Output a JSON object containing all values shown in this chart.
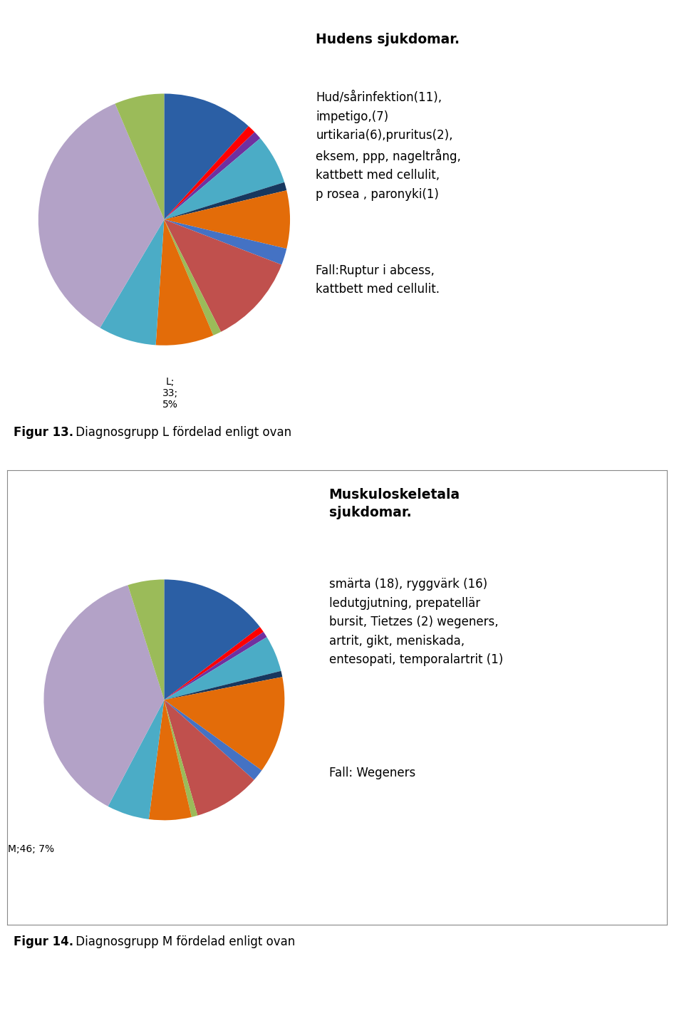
{
  "chart1": {
    "title_bold": "Hudens sjukdomar.",
    "text1": "Hud/sårinfektion(11),\nimpetigo,(7)\nurtikaria(6),pruritus(2),\neksem, ppp, nageltrång,\nkattbett med cellulit,\np rosea , paronyki(1)",
    "text2": "Fall:Ruptur i abcess,\nkattbett med cellulit.",
    "label": "L;\n33;\n5%",
    "slices": [
      11,
      1,
      1,
      6,
      1,
      7,
      2,
      11,
      1,
      7,
      7,
      33,
      6
    ],
    "colors": [
      "#2B5FA5",
      "#FF0000",
      "#7030A0",
      "#4BACC6",
      "#17375E",
      "#E36C09",
      "#4472C4",
      "#C0504D",
      "#9BBB59",
      "#E36C09",
      "#4BACC6",
      "#B3A2C7",
      "#9BBB59"
    ],
    "startangle": 90
  },
  "chart2": {
    "title_bold": "Muskuloskeletala\nsjukdomar.",
    "text1": "smärta (18), ryggvärk (16)\nledutgjutning, prepatellär\nbursit, Tietzes (2) wegeners,\nartrit, gikt, meniskada,\nentesopati, temporalartrit (1)",
    "text2": "Fall: Wegeners",
    "label": "M;46; 7%",
    "slices": [
      18,
      1,
      1,
      6,
      1,
      16,
      2,
      11,
      1,
      7,
      7,
      46,
      6
    ],
    "colors": [
      "#2B5FA5",
      "#FF0000",
      "#7030A0",
      "#4BACC6",
      "#17375E",
      "#E36C09",
      "#4472C4",
      "#C0504D",
      "#9BBB59",
      "#E36C09",
      "#4BACC6",
      "#B3A2C7",
      "#9BBB59"
    ],
    "startangle": 90
  },
  "fig13_bold": "Figur 13.",
  "fig13_rest": " Diagnosgrupp L fördelad enligt ovan",
  "fig14_bold": "Figur 14.",
  "fig14_rest": " Diagnosgrupp M fördelad enligt ovan",
  "background_color": "#FFFFFF"
}
